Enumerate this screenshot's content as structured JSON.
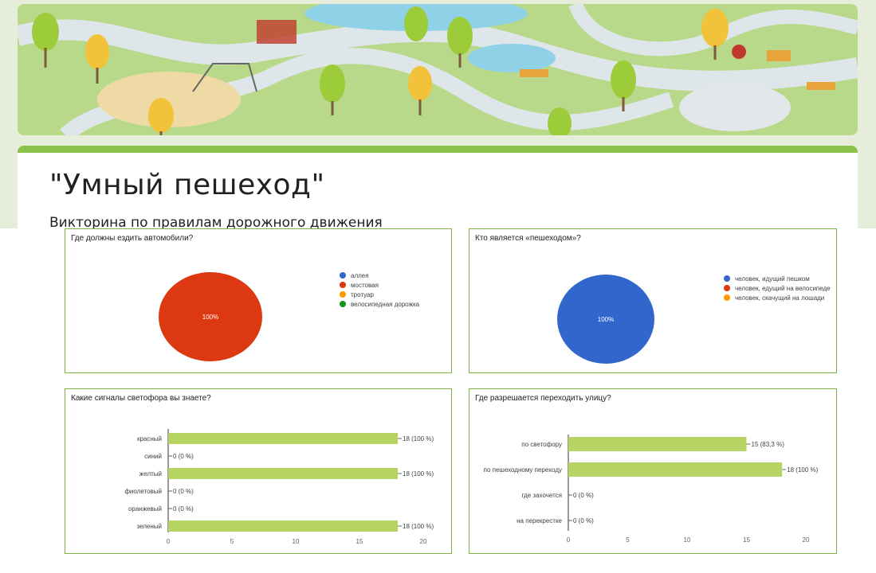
{
  "form": {
    "title": "\"Умный пешеход\"",
    "subtitle": "Викторина по правилам дорожного движения"
  },
  "colors": {
    "accent": "#8bc34a",
    "bar": "#b5d461",
    "pie_red": "#dc3912",
    "pie_blue": "#3366cc",
    "pie_orange": "#ff9900",
    "pie_green": "#109618"
  },
  "chart_data": [
    {
      "type": "pie",
      "title": "Где должны ездить автомобили?",
      "categories": [
        "аллея",
        "мостовая",
        "тротуар",
        "велосипедная дорожка"
      ],
      "values": [
        0,
        100,
        0,
        0
      ],
      "colors": [
        "#3366cc",
        "#dc3912",
        "#ff9900",
        "#109618"
      ],
      "labels": [
        "",
        "100%",
        "",
        ""
      ],
      "legend": "right"
    },
    {
      "type": "pie",
      "title": "Кто является «пешеходом»?",
      "categories": [
        "человек, идущий пешком",
        "человек, едущий на велосипеде",
        "человек, скачущий на лошади"
      ],
      "values": [
        100,
        0,
        0
      ],
      "colors": [
        "#3366cc",
        "#dc3912",
        "#ff9900"
      ],
      "labels": [
        "100%",
        "",
        ""
      ],
      "legend": "right"
    },
    {
      "type": "bar",
      "orientation": "horizontal",
      "title": "Какие сигналы светофора вы знаете?",
      "categories": [
        "красный",
        "синий",
        "желтый",
        "фиолетовый",
        "оранжевый",
        "зеленый"
      ],
      "values": [
        18,
        0,
        18,
        0,
        0,
        18
      ],
      "labels": [
        "18 (100 %)",
        "0 (0 %)",
        "18 (100 %)",
        "0 (0 %)",
        "0 (0 %)",
        "18 (100 %)"
      ],
      "xlim": [
        0,
        20
      ],
      "xticks": [
        "0",
        "5",
        "10",
        "15",
        "20"
      ]
    },
    {
      "type": "bar",
      "orientation": "horizontal",
      "title": "Где разрешается переходить улицу?",
      "categories": [
        "по светофору",
        "по пешеходному переходу",
        "где захочется",
        "на перекрестке"
      ],
      "values": [
        15,
        18,
        0,
        0
      ],
      "labels": [
        "15 (83,3 %)",
        "18 (100 %)",
        "0 (0 %)",
        "0 (0 %)"
      ],
      "xlim": [
        0,
        20
      ],
      "xticks": [
        "0",
        "5",
        "10",
        "15",
        "20"
      ]
    }
  ]
}
